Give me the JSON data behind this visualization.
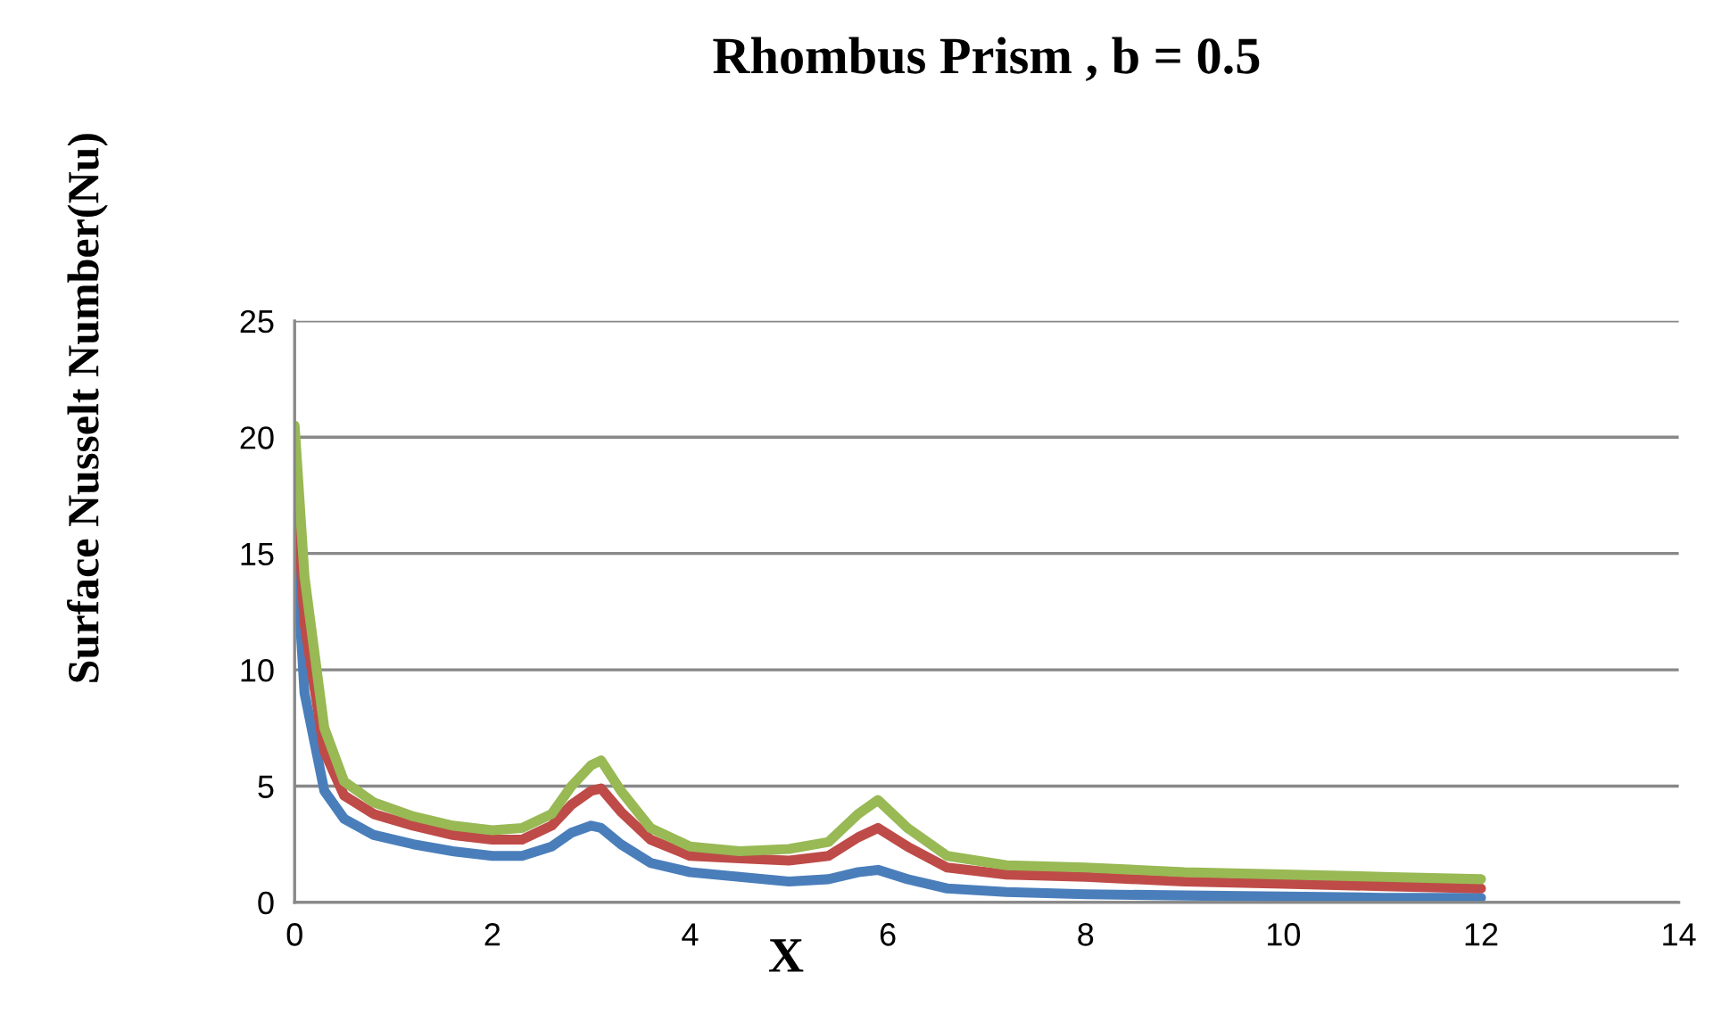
{
  "chart_data": {
    "type": "line",
    "title": "Rhombus Prism , b = 0.5",
    "xlabel": "X",
    "ylabel": "Surface Nusselt Number(Nu)",
    "x": [
      0,
      0.1,
      0.3,
      0.5,
      0.8,
      1.2,
      1.6,
      2.0,
      2.3,
      2.6,
      2.8,
      3.0,
      3.1,
      3.3,
      3.6,
      4.0,
      4.5,
      5.0,
      5.4,
      5.7,
      5.9,
      6.2,
      6.6,
      7.2,
      8,
      9,
      10,
      11,
      12
    ],
    "series": [
      {
        "color": "#4a7ebb",
        "values": [
          16,
          9,
          4.8,
          3.6,
          2.9,
          2.5,
          2.2,
          2.0,
          2.0,
          2.4,
          3.0,
          3.3,
          3.2,
          2.5,
          1.7,
          1.3,
          1.1,
          0.9,
          1.0,
          1.3,
          1.4,
          1.0,
          0.6,
          0.45,
          0.35,
          0.3,
          0.25,
          0.2,
          0.2
        ]
      },
      {
        "color": "#be4b48",
        "values": [
          19,
          12,
          6.5,
          4.6,
          3.8,
          3.3,
          2.9,
          2.7,
          2.7,
          3.3,
          4.2,
          4.8,
          4.9,
          3.9,
          2.7,
          2.0,
          1.9,
          1.8,
          2.0,
          2.8,
          3.2,
          2.4,
          1.5,
          1.2,
          1.1,
          0.9,
          0.8,
          0.7,
          0.6
        ]
      },
      {
        "color": "#98b954",
        "values": [
          20.5,
          14,
          7.5,
          5.2,
          4.3,
          3.7,
          3.3,
          3.1,
          3.2,
          3.8,
          5.0,
          5.9,
          6.1,
          4.8,
          3.2,
          2.4,
          2.2,
          2.3,
          2.6,
          3.8,
          4.4,
          3.2,
          2.0,
          1.6,
          1.5,
          1.3,
          1.2,
          1.1,
          1.0
        ]
      }
    ],
    "xlim": [
      0,
      14
    ],
    "xticks": [
      0,
      2,
      4,
      6,
      8,
      10,
      12,
      14
    ],
    "ylim": [
      0,
      25
    ],
    "yticks": [
      0,
      5,
      10,
      15,
      20,
      25
    ],
    "grid": "y",
    "marker": "none",
    "line_style": "solid"
  }
}
